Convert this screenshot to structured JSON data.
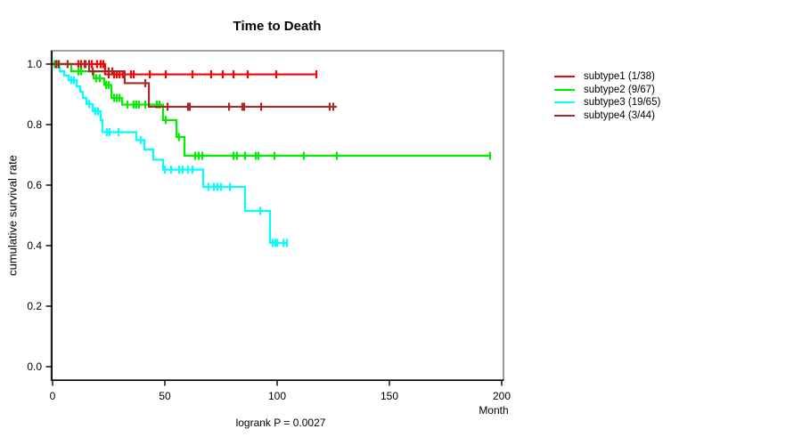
{
  "chart_data": {
    "type": "line",
    "subtype": "kaplan-meier-step",
    "title": "Time to Death",
    "xlabel": "Month",
    "ylabel": "cumulative survival rate",
    "footnote": "logrank P = 0.0027",
    "xlim": [
      0,
      200
    ],
    "ylim": [
      0,
      1
    ],
    "x_tick_values": [
      0,
      50,
      100,
      150,
      200
    ],
    "x_tick_labels": [
      "0",
      "50",
      "100",
      "150",
      "200"
    ],
    "y_tick_values": [
      0,
      0.2,
      0.4,
      0.6,
      0.8,
      1.0
    ],
    "y_tick_labels": [
      "0.0",
      "0.2",
      "0.4",
      "0.6",
      "0.8",
      "1.0"
    ],
    "grid": false,
    "legend_position": "right",
    "background": "#FFFFFF",
    "axis_color": "#000000",
    "frame_color": "#808080",
    "series": [
      {
        "name": "subtype1",
        "legend_label": "subtype1 (1/38)",
        "events": "1/38",
        "color": "#FF0000",
        "steps": [
          [
            0,
            1.0
          ],
          [
            23.4,
            0.966
          ]
        ],
        "end": 117.5,
        "censors": [
          [
            1.2,
            1.0
          ],
          [
            2.4,
            1.0
          ],
          [
            11.5,
            1.0
          ],
          [
            12.7,
            1.0
          ],
          [
            14.3,
            1.0
          ],
          [
            16.3,
            1.0
          ],
          [
            17.5,
            1.0
          ],
          [
            19.8,
            1.0
          ],
          [
            21.4,
            1.0
          ],
          [
            22.6,
            1.0
          ],
          [
            25,
            0.966
          ],
          [
            27.4,
            0.966
          ],
          [
            28.6,
            0.966
          ],
          [
            29.8,
            0.966
          ],
          [
            31.3,
            0.966
          ],
          [
            34.9,
            0.966
          ],
          [
            36.1,
            0.966
          ],
          [
            43.3,
            0.966
          ],
          [
            50.4,
            0.966
          ],
          [
            62.3,
            0.966
          ],
          [
            70.6,
            0.966
          ],
          [
            75.8,
            0.966
          ],
          [
            80.6,
            0.966
          ],
          [
            86.9,
            0.966
          ],
          [
            99.6,
            0.966
          ],
          [
            117.5,
            0.966
          ]
        ]
      },
      {
        "name": "subtype2",
        "legend_label": "subtype2 (9/67)",
        "events": "9/67",
        "color": "#00EE00",
        "steps": [
          [
            0,
            1.0
          ],
          [
            8.3,
            0.976
          ],
          [
            18.3,
            0.953
          ],
          [
            23,
            0.931
          ],
          [
            26.2,
            0.888
          ],
          [
            31,
            0.866
          ],
          [
            49.2,
            0.815
          ],
          [
            55.2,
            0.759
          ],
          [
            58.7,
            0.697
          ]
        ],
        "end": 194.8,
        "censors": [
          [
            0.8,
            1.0
          ],
          [
            2.0,
            1.0
          ],
          [
            11.5,
            0.976
          ],
          [
            12.7,
            0.976
          ],
          [
            19.4,
            0.953
          ],
          [
            21.0,
            0.953
          ],
          [
            23.8,
            0.931
          ],
          [
            25.0,
            0.931
          ],
          [
            27.4,
            0.888
          ],
          [
            28.6,
            0.888
          ],
          [
            29.8,
            0.888
          ],
          [
            33.3,
            0.866
          ],
          [
            36.1,
            0.866
          ],
          [
            37.3,
            0.866
          ],
          [
            38.5,
            0.866
          ],
          [
            41.3,
            0.866
          ],
          [
            46.4,
            0.866
          ],
          [
            47.6,
            0.866
          ],
          [
            50.4,
            0.815
          ],
          [
            56.3,
            0.759
          ],
          [
            63.5,
            0.697
          ],
          [
            65.1,
            0.697
          ],
          [
            66.7,
            0.697
          ],
          [
            80.6,
            0.697
          ],
          [
            82.1,
            0.697
          ],
          [
            85.7,
            0.697
          ],
          [
            90.5,
            0.697
          ],
          [
            91.7,
            0.697
          ],
          [
            98.8,
            0.697
          ],
          [
            111.9,
            0.697
          ],
          [
            126.6,
            0.697
          ],
          [
            194.8,
            0.697
          ]
        ]
      },
      {
        "name": "subtype3",
        "legend_label": "subtype3 (19/65)",
        "events": "19/65",
        "color": "#00FFFF",
        "steps": [
          [
            0,
            1.0
          ],
          [
            1.6,
            0.988
          ],
          [
            3.2,
            0.976
          ],
          [
            5.2,
            0.962
          ],
          [
            7.1,
            0.947
          ],
          [
            10.7,
            0.926
          ],
          [
            12.3,
            0.909
          ],
          [
            13.5,
            0.888
          ],
          [
            15.1,
            0.868
          ],
          [
            17.9,
            0.844
          ],
          [
            21.4,
            0.815
          ],
          [
            22.2,
            0.775
          ],
          [
            37.3,
            0.749
          ],
          [
            40.9,
            0.718
          ],
          [
            44.8,
            0.684
          ],
          [
            49.2,
            0.651
          ],
          [
            67.1,
            0.594
          ],
          [
            85.7,
            0.515
          ],
          [
            96.8,
            0.409
          ]
        ],
        "end": 104.4,
        "censors": [
          [
            8.3,
            0.947
          ],
          [
            9.5,
            0.947
          ],
          [
            16.3,
            0.868
          ],
          [
            19.0,
            0.844
          ],
          [
            20.2,
            0.844
          ],
          [
            24.2,
            0.775
          ],
          [
            25.4,
            0.775
          ],
          [
            29.4,
            0.775
          ],
          [
            39.3,
            0.749
          ],
          [
            50,
            0.651
          ],
          [
            52.8,
            0.651
          ],
          [
            56.3,
            0.651
          ],
          [
            57.9,
            0.651
          ],
          [
            60.3,
            0.651
          ],
          [
            62.3,
            0.651
          ],
          [
            69.4,
            0.594
          ],
          [
            71.8,
            0.594
          ],
          [
            73.4,
            0.594
          ],
          [
            75,
            0.594
          ],
          [
            79,
            0.594
          ],
          [
            92.5,
            0.515
          ],
          [
            98,
            0.409
          ],
          [
            99.2,
            0.409
          ],
          [
            100,
            0.409
          ],
          [
            102.8,
            0.409
          ],
          [
            104.4,
            0.409
          ]
        ]
      },
      {
        "name": "subtype4",
        "legend_label": "subtype4 (3/44)",
        "events": "3/44",
        "color": "#A52A2A",
        "steps": [
          [
            0,
            1.0
          ],
          [
            16.3,
            0.976
          ],
          [
            32.1,
            0.937
          ],
          [
            42.9,
            0.859
          ]
        ],
        "end": 126.6,
        "censors": [
          [
            1.6,
            1.0
          ],
          [
            2.8,
            1.0
          ],
          [
            6.7,
            1.0
          ],
          [
            12.7,
            1.0
          ],
          [
            14.7,
            1.0
          ],
          [
            17.9,
            0.976
          ],
          [
            25,
            0.976
          ],
          [
            26.6,
            0.976
          ],
          [
            41.3,
            0.937
          ],
          [
            51.2,
            0.859
          ],
          [
            60.3,
            0.859
          ],
          [
            61.1,
            0.859
          ],
          [
            78.6,
            0.859
          ],
          [
            84.5,
            0.859
          ],
          [
            85.3,
            0.859
          ],
          [
            92.9,
            0.859
          ],
          [
            123.4,
            0.859
          ],
          [
            125,
            0.859
          ]
        ]
      }
    ]
  }
}
